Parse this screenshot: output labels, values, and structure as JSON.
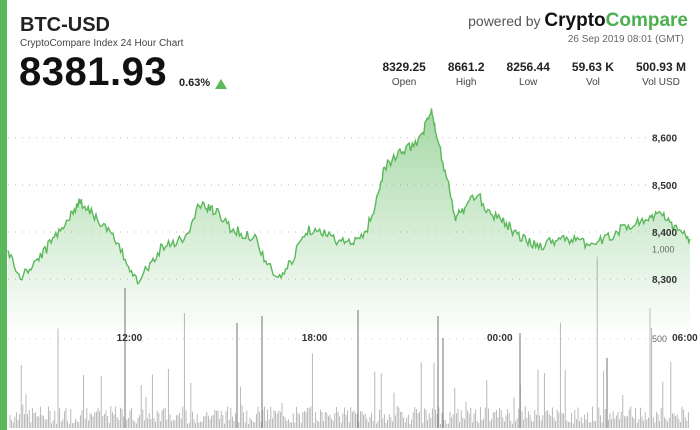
{
  "header": {
    "symbol": "BTC-USD",
    "subtitle": "CryptoCompare Index 24 Hour Chart",
    "price": "8381.93",
    "change": "0.63%",
    "powered_by": "powered by",
    "brand_part1": "Crypto",
    "brand_part2": "Compare",
    "timestamp": "26 Sep 2019 08:01 (GMT)"
  },
  "stats": [
    {
      "value": "8329.25",
      "label": "Open"
    },
    {
      "value": "8661.2",
      "label": "High"
    },
    {
      "value": "8256.44",
      "label": "Low"
    },
    {
      "value": "59.63 K",
      "label": "Vol"
    },
    {
      "value": "500.93 M",
      "label": "Vol USD"
    }
  ],
  "colors": {
    "accent": "#5cb85c",
    "line": "#5cb85c",
    "volume": "#9e9e9e"
  },
  "chart_data": {
    "type": "area",
    "title": "",
    "price_ticks": [
      8300,
      8400,
      8500,
      8600
    ],
    "price_tick_labels": [
      "8,300",
      "8,400",
      "8,500",
      "8,600"
    ],
    "volume_ticks": [
      500,
      1000
    ],
    "volume_tick_labels": [
      "500",
      "1,000"
    ],
    "time_labels": [
      "12:00",
      "18:00",
      "00:00",
      "06:00"
    ],
    "price_series": [
      [
        8.0,
        8360
      ],
      [
        8.4,
        8300
      ],
      [
        8.8,
        8330
      ],
      [
        9.2,
        8360
      ],
      [
        9.6,
        8400
      ],
      [
        10.0,
        8430
      ],
      [
        10.3,
        8465
      ],
      [
        10.6,
        8450
      ],
      [
        11.0,
        8420
      ],
      [
        11.4,
        8390
      ],
      [
        11.8,
        8340
      ],
      [
        12.2,
        8300
      ],
      [
        12.6,
        8330
      ],
      [
        13.0,
        8370
      ],
      [
        13.4,
        8380
      ],
      [
        13.8,
        8390
      ],
      [
        14.2,
        8460
      ],
      [
        14.5,
        8450
      ],
      [
        14.8,
        8440
      ],
      [
        15.2,
        8410
      ],
      [
        15.6,
        8395
      ],
      [
        16.0,
        8390
      ],
      [
        16.4,
        8330
      ],
      [
        16.8,
        8300
      ],
      [
        17.2,
        8340
      ],
      [
        17.6,
        8400
      ],
      [
        18.0,
        8410
      ],
      [
        18.4,
        8390
      ],
      [
        18.8,
        8380
      ],
      [
        19.2,
        8375
      ],
      [
        19.6,
        8400
      ],
      [
        20.0,
        8480
      ],
      [
        20.2,
        8540
      ],
      [
        20.6,
        8560
      ],
      [
        21.0,
        8580
      ],
      [
        21.4,
        8600
      ],
      [
        21.7,
        8660
      ],
      [
        21.9,
        8600
      ],
      [
        22.2,
        8520
      ],
      [
        22.5,
        8430
      ],
      [
        22.8,
        8450
      ],
      [
        23.2,
        8480
      ],
      [
        23.6,
        8440
      ],
      [
        24.0,
        8430
      ],
      [
        24.4,
        8400
      ],
      [
        24.8,
        8380
      ],
      [
        25.2,
        8370
      ],
      [
        25.6,
        8380
      ],
      [
        26.0,
        8390
      ],
      [
        26.4,
        8380
      ],
      [
        26.8,
        8375
      ],
      [
        27.2,
        8380
      ],
      [
        27.6,
        8395
      ],
      [
        28.0,
        8410
      ],
      [
        28.4,
        8420
      ],
      [
        28.8,
        8430
      ],
      [
        29.1,
        8440
      ],
      [
        29.4,
        8420
      ],
      [
        29.8,
        8400
      ],
      [
        30.1,
        8385
      ]
    ],
    "price_range": [
      8260,
      8680
    ],
    "volume_range": [
      0,
      1150
    ],
    "x_range": [
      8.0,
      30.1
    ]
  }
}
